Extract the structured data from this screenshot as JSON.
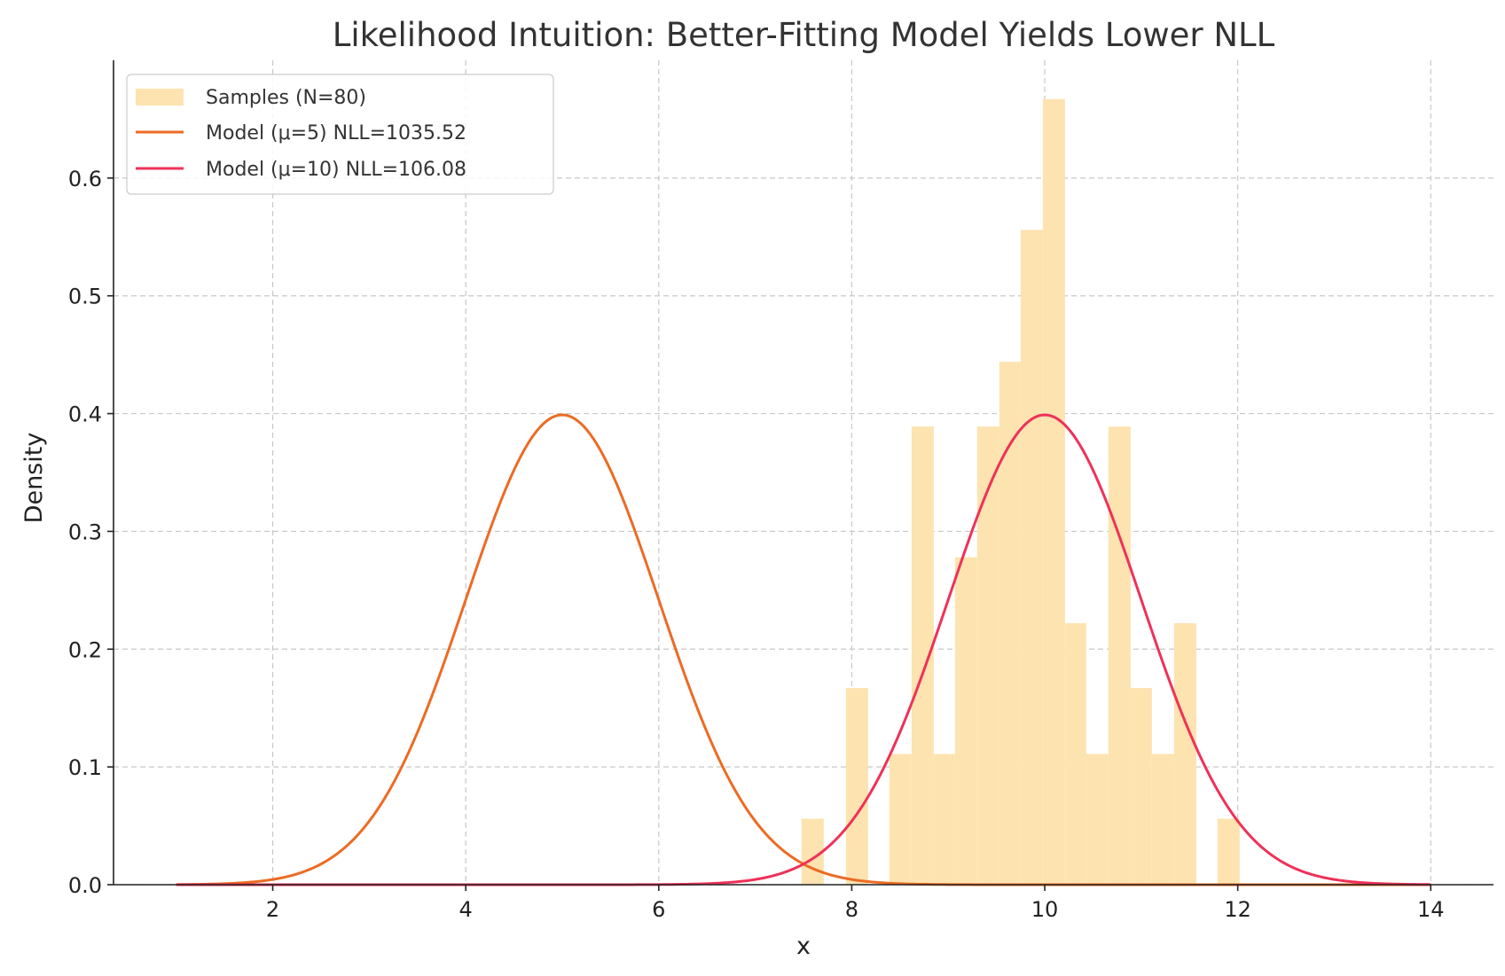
{
  "chart_data": {
    "type": "histogram+line",
    "title": "Likelihood Intuition: Better-Fitting Model Yields Lower NLL",
    "xlabel": "x",
    "ylabel": "Density",
    "xlim": [
      0.35,
      14.65
    ],
    "ylim": [
      0,
      0.7
    ],
    "xticks": [
      2,
      4,
      6,
      8,
      10,
      12,
      14
    ],
    "yticks": [
      0.0,
      0.1,
      0.2,
      0.3,
      0.4,
      0.5,
      0.6
    ],
    "grid": true,
    "legend_position": "top-left",
    "histogram": {
      "name": "Samples (N=80)",
      "color": "#fde3b0",
      "bins": [
        {
          "x0": 7.48,
          "x1": 7.71,
          "density": 0.056
        },
        {
          "x0": 7.71,
          "x1": 7.94,
          "density": 0.0
        },
        {
          "x0": 7.94,
          "x1": 8.17,
          "density": 0.167
        },
        {
          "x0": 8.17,
          "x1": 8.39,
          "density": 0.0
        },
        {
          "x0": 8.39,
          "x1": 8.62,
          "density": 0.111
        },
        {
          "x0": 8.62,
          "x1": 8.85,
          "density": 0.389
        },
        {
          "x0": 8.85,
          "x1": 9.07,
          "density": 0.111
        },
        {
          "x0": 9.07,
          "x1": 9.3,
          "density": 0.278
        },
        {
          "x0": 9.3,
          "x1": 9.53,
          "density": 0.389
        },
        {
          "x0": 9.53,
          "x1": 9.75,
          "density": 0.444
        },
        {
          "x0": 9.75,
          "x1": 9.98,
          "density": 0.556
        },
        {
          "x0": 9.98,
          "x1": 10.21,
          "density": 0.667
        },
        {
          "x0": 10.21,
          "x1": 10.43,
          "density": 0.222
        },
        {
          "x0": 10.43,
          "x1": 10.66,
          "density": 0.111
        },
        {
          "x0": 10.66,
          "x1": 10.89,
          "density": 0.389
        },
        {
          "x0": 10.89,
          "x1": 11.11,
          "density": 0.167
        },
        {
          "x0": 11.11,
          "x1": 11.34,
          "density": 0.111
        },
        {
          "x0": 11.34,
          "x1": 11.57,
          "density": 0.222
        },
        {
          "x0": 11.57,
          "x1": 11.79,
          "density": 0.0
        },
        {
          "x0": 11.79,
          "x1": 12.02,
          "density": 0.056
        }
      ]
    },
    "series": [
      {
        "name": "Model (μ=5)  NLL=1035.52",
        "mu": 5,
        "sigma": 1,
        "x_range": [
          1,
          14
        ],
        "color": "#ec6b23"
      },
      {
        "name": "Model (μ=10)  NLL=106.08",
        "mu": 10,
        "sigma": 1,
        "x_range": [
          1,
          14
        ],
        "color": "#ef3158"
      }
    ]
  }
}
